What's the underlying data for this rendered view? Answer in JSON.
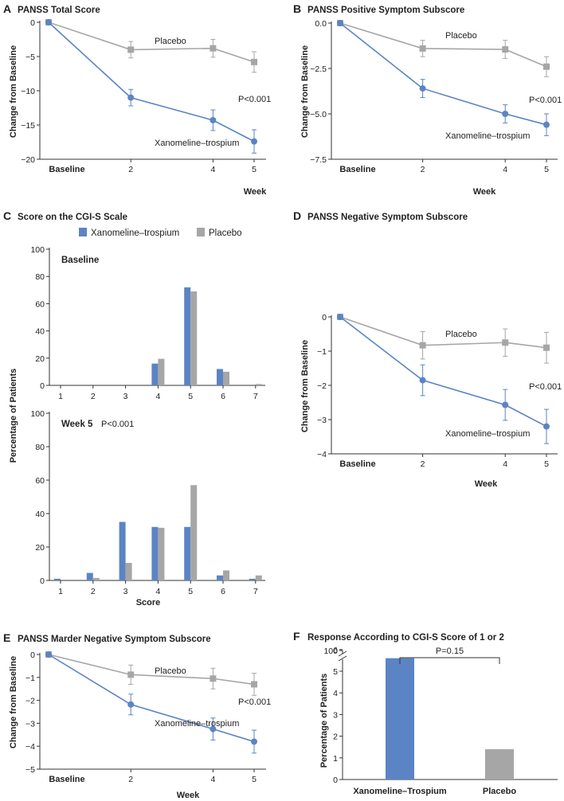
{
  "colors": {
    "drug": "#5b84c4",
    "placebo": "#a6a6a6",
    "axis": "#333333"
  },
  "legend": {
    "drug": "Xanomeline–trospium",
    "placebo": "Placebo"
  },
  "chart_data": [
    {
      "panel": "A",
      "type": "line",
      "title": "PANSS Total Score",
      "xlabel": "Week",
      "ylabel": "Change from Baseline",
      "x": [
        0,
        2,
        4,
        5
      ],
      "x_tick_labels": [
        "Baseline",
        "2",
        "4",
        "5"
      ],
      "ylim": [
        -20,
        0
      ],
      "y_ticks": [
        0,
        -5,
        -10,
        -15,
        -20
      ],
      "y_tick_labels": [
        "0",
        "−5",
        "−10",
        "−15",
        "−20"
      ],
      "series": [
        {
          "name": "Placebo",
          "label": "Placebo",
          "values": [
            0,
            -4.0,
            -3.8,
            -5.8
          ],
          "error": [
            0,
            1.2,
            1.3,
            1.5
          ]
        },
        {
          "name": "Xanomeline–trospium",
          "label": "Xanomeline–trospium",
          "values": [
            0,
            -11.0,
            -14.3,
            -17.4
          ],
          "error": [
            0,
            1.2,
            1.5,
            1.7
          ]
        }
      ],
      "annotation": "P<0.001"
    },
    {
      "panel": "B",
      "type": "line",
      "title": "PANSS Positive Symptom Subscore",
      "xlabel": "Week",
      "ylabel": "Change from Baseline",
      "x": [
        0,
        2,
        4,
        5
      ],
      "x_tick_labels": [
        "Baseline",
        "2",
        "4",
        "5"
      ],
      "ylim": [
        -7.5,
        0
      ],
      "y_ticks": [
        0,
        -2.5,
        -5,
        -7.5
      ],
      "y_tick_labels": [
        "0.0",
        "−2.5",
        "−5.0",
        "−7.5"
      ],
      "series": [
        {
          "name": "Placebo",
          "label": "Placebo",
          "values": [
            0,
            -1.4,
            -1.45,
            -2.4
          ],
          "error": [
            0,
            0.45,
            0.5,
            0.55
          ]
        },
        {
          "name": "Xanomeline–trospium",
          "label": "Xanomeline–trospium",
          "values": [
            0,
            -3.6,
            -5.0,
            -5.6
          ],
          "error": [
            0,
            0.5,
            0.5,
            0.6
          ]
        }
      ],
      "annotation": "P<0.001"
    },
    {
      "panel": "C",
      "type": "bar",
      "title": "Score on the CGI-S Scale",
      "ylabel": "Percentage of Patients",
      "xlabel": "Score",
      "categories": [
        "1",
        "2",
        "3",
        "4",
        "5",
        "6",
        "7"
      ],
      "ylim": [
        0,
        100
      ],
      "y_ticks": [
        0,
        20,
        40,
        60,
        80,
        100
      ],
      "subplots": [
        {
          "label": "Baseline",
          "annotation": "",
          "series": [
            {
              "name": "Xanomeline–trospium",
              "values": [
                0,
                0,
                0,
                16,
                72,
                12,
                0
              ]
            },
            {
              "name": "Placebo",
              "values": [
                0,
                0,
                0,
                19.5,
                69,
                10,
                1
              ]
            }
          ]
        },
        {
          "label": "Week 5",
          "annotation": "P<0.001",
          "series": [
            {
              "name": "Xanomeline–trospium",
              "values": [
                1,
                4.5,
                35,
                32,
                32,
                3,
                1
              ]
            },
            {
              "name": "Placebo",
              "values": [
                0,
                1.5,
                10.5,
                31.5,
                57,
                6,
                3
              ]
            }
          ]
        }
      ]
    },
    {
      "panel": "D",
      "type": "line",
      "title": "PANSS Negative Symptom Subscore",
      "xlabel": "Week",
      "ylabel": "Change from Baseline",
      "x": [
        0,
        2,
        4,
        5
      ],
      "x_tick_labels": [
        "Baseline",
        "2",
        "4",
        "5"
      ],
      "ylim": [
        -4,
        0
      ],
      "y_ticks": [
        0,
        -1,
        -2,
        -3,
        -4
      ],
      "y_tick_labels": [
        "0",
        "−1",
        "−2",
        "−3",
        "−4"
      ],
      "series": [
        {
          "name": "Placebo",
          "label": "Placebo",
          "values": [
            0,
            -0.83,
            -0.75,
            -0.9
          ],
          "error": [
            0,
            0.4,
            0.4,
            0.45
          ]
        },
        {
          "name": "Xanomeline–trospium",
          "label": "Xanomeline–trospium",
          "values": [
            0,
            -1.85,
            -2.57,
            -3.2
          ],
          "error": [
            0,
            0.45,
            0.45,
            0.5
          ]
        }
      ],
      "annotation": "P<0.001"
    },
    {
      "panel": "E",
      "type": "line",
      "title": "PANSS Marder Negative Symptom Subscore",
      "xlabel": "Week",
      "ylabel": "Change from Baseline",
      "x": [
        0,
        2,
        4,
        5
      ],
      "x_tick_labels": [
        "Baseline",
        "2",
        "4",
        "5"
      ],
      "ylim": [
        -5,
        0
      ],
      "y_ticks": [
        0,
        -1,
        -2,
        -3,
        -4,
        -5
      ],
      "y_tick_labels": [
        "0",
        "−1",
        "−2",
        "−3",
        "−4",
        "−5"
      ],
      "series": [
        {
          "name": "Placebo",
          "label": "Placebo",
          "values": [
            0,
            -0.88,
            -1.05,
            -1.3
          ],
          "error": [
            0,
            0.42,
            0.45,
            0.48
          ]
        },
        {
          "name": "Xanomeline–trospium",
          "label": "Xanomeline–trospium",
          "values": [
            0,
            -2.18,
            -3.25,
            -3.8
          ],
          "error": [
            0,
            0.45,
            0.48,
            0.5
          ]
        }
      ],
      "annotation": "P<0.001"
    },
    {
      "panel": "F",
      "type": "bar",
      "title": "Response According to CGI-S Score of 1 or 2",
      "ylabel": "Percentage of Patients",
      "xlabel": "",
      "categories": [
        "Xanomeline–Trospium",
        "Placebo"
      ],
      "values": [
        5.6,
        1.4
      ],
      "ylim": [
        0,
        6
      ],
      "y_ticks": [
        0,
        1,
        2,
        3,
        4,
        5,
        6
      ],
      "axis_break_label": "100",
      "annotation": "P=0.15"
    }
  ]
}
